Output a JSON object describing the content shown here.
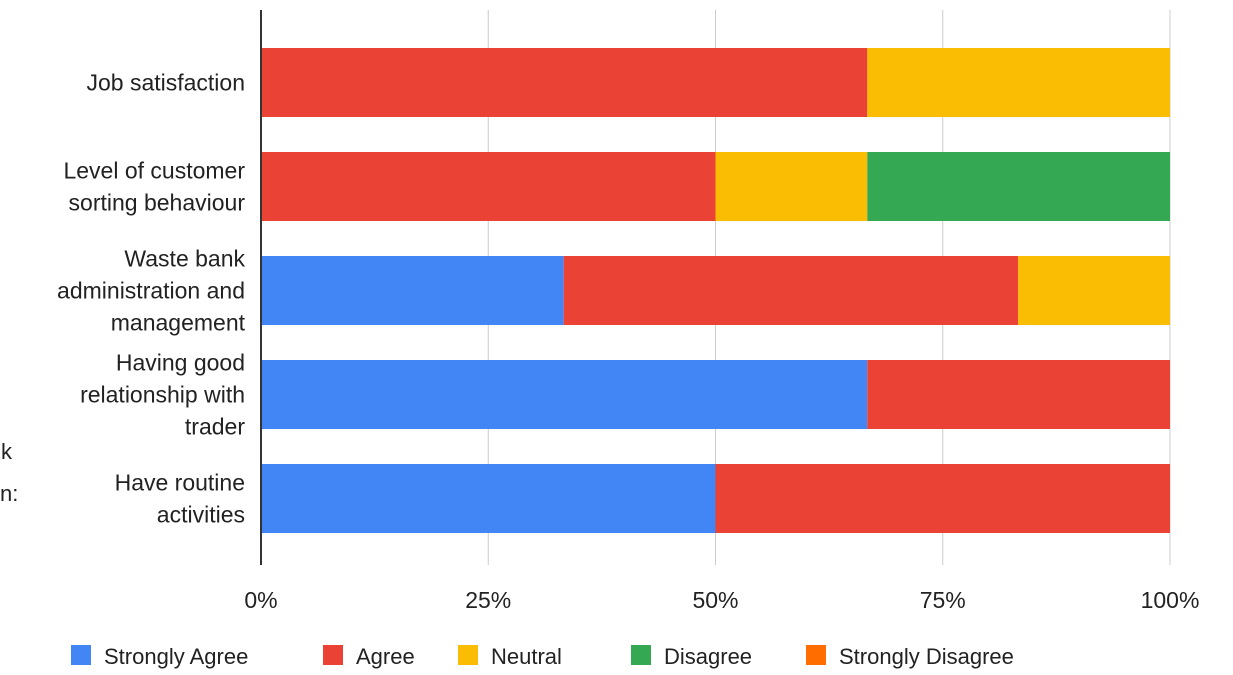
{
  "chart_data": {
    "type": "bar",
    "orientation": "horizontal",
    "stacked": "percent",
    "categories": [
      [
        "Job satisfaction"
      ],
      [
        "Level of customer",
        "sorting behaviour"
      ],
      [
        "Waste bank",
        "administration and",
        "management"
      ],
      [
        "Having good",
        "relationship with",
        "trader"
      ],
      [
        "Have routine",
        "activities"
      ]
    ],
    "series": [
      {
        "name": "Strongly Agree",
        "color": "#4285F4",
        "values": [
          0,
          0,
          33.3,
          66.7,
          50
        ]
      },
      {
        "name": "Agree",
        "color": "#EA4335",
        "values": [
          66.7,
          50,
          50,
          33.3,
          50
        ]
      },
      {
        "name": "Neutral",
        "color": "#FBBC04",
        "values": [
          33.3,
          16.7,
          16.7,
          0,
          0
        ]
      },
      {
        "name": "Disagree",
        "color": "#34A853",
        "values": [
          0,
          33.3,
          0,
          0,
          0
        ]
      },
      {
        "name": "Strongly Disagree",
        "color": "#FF6D01",
        "values": [
          0,
          0,
          0,
          0,
          0
        ]
      }
    ],
    "x_ticks": [
      "0%",
      "25%",
      "50%",
      "75%",
      "100%"
    ],
    "xlim": [
      0,
      100
    ],
    "grid": true,
    "legend": "bottom"
  },
  "clipped_text": [
    "k",
    "n:"
  ]
}
